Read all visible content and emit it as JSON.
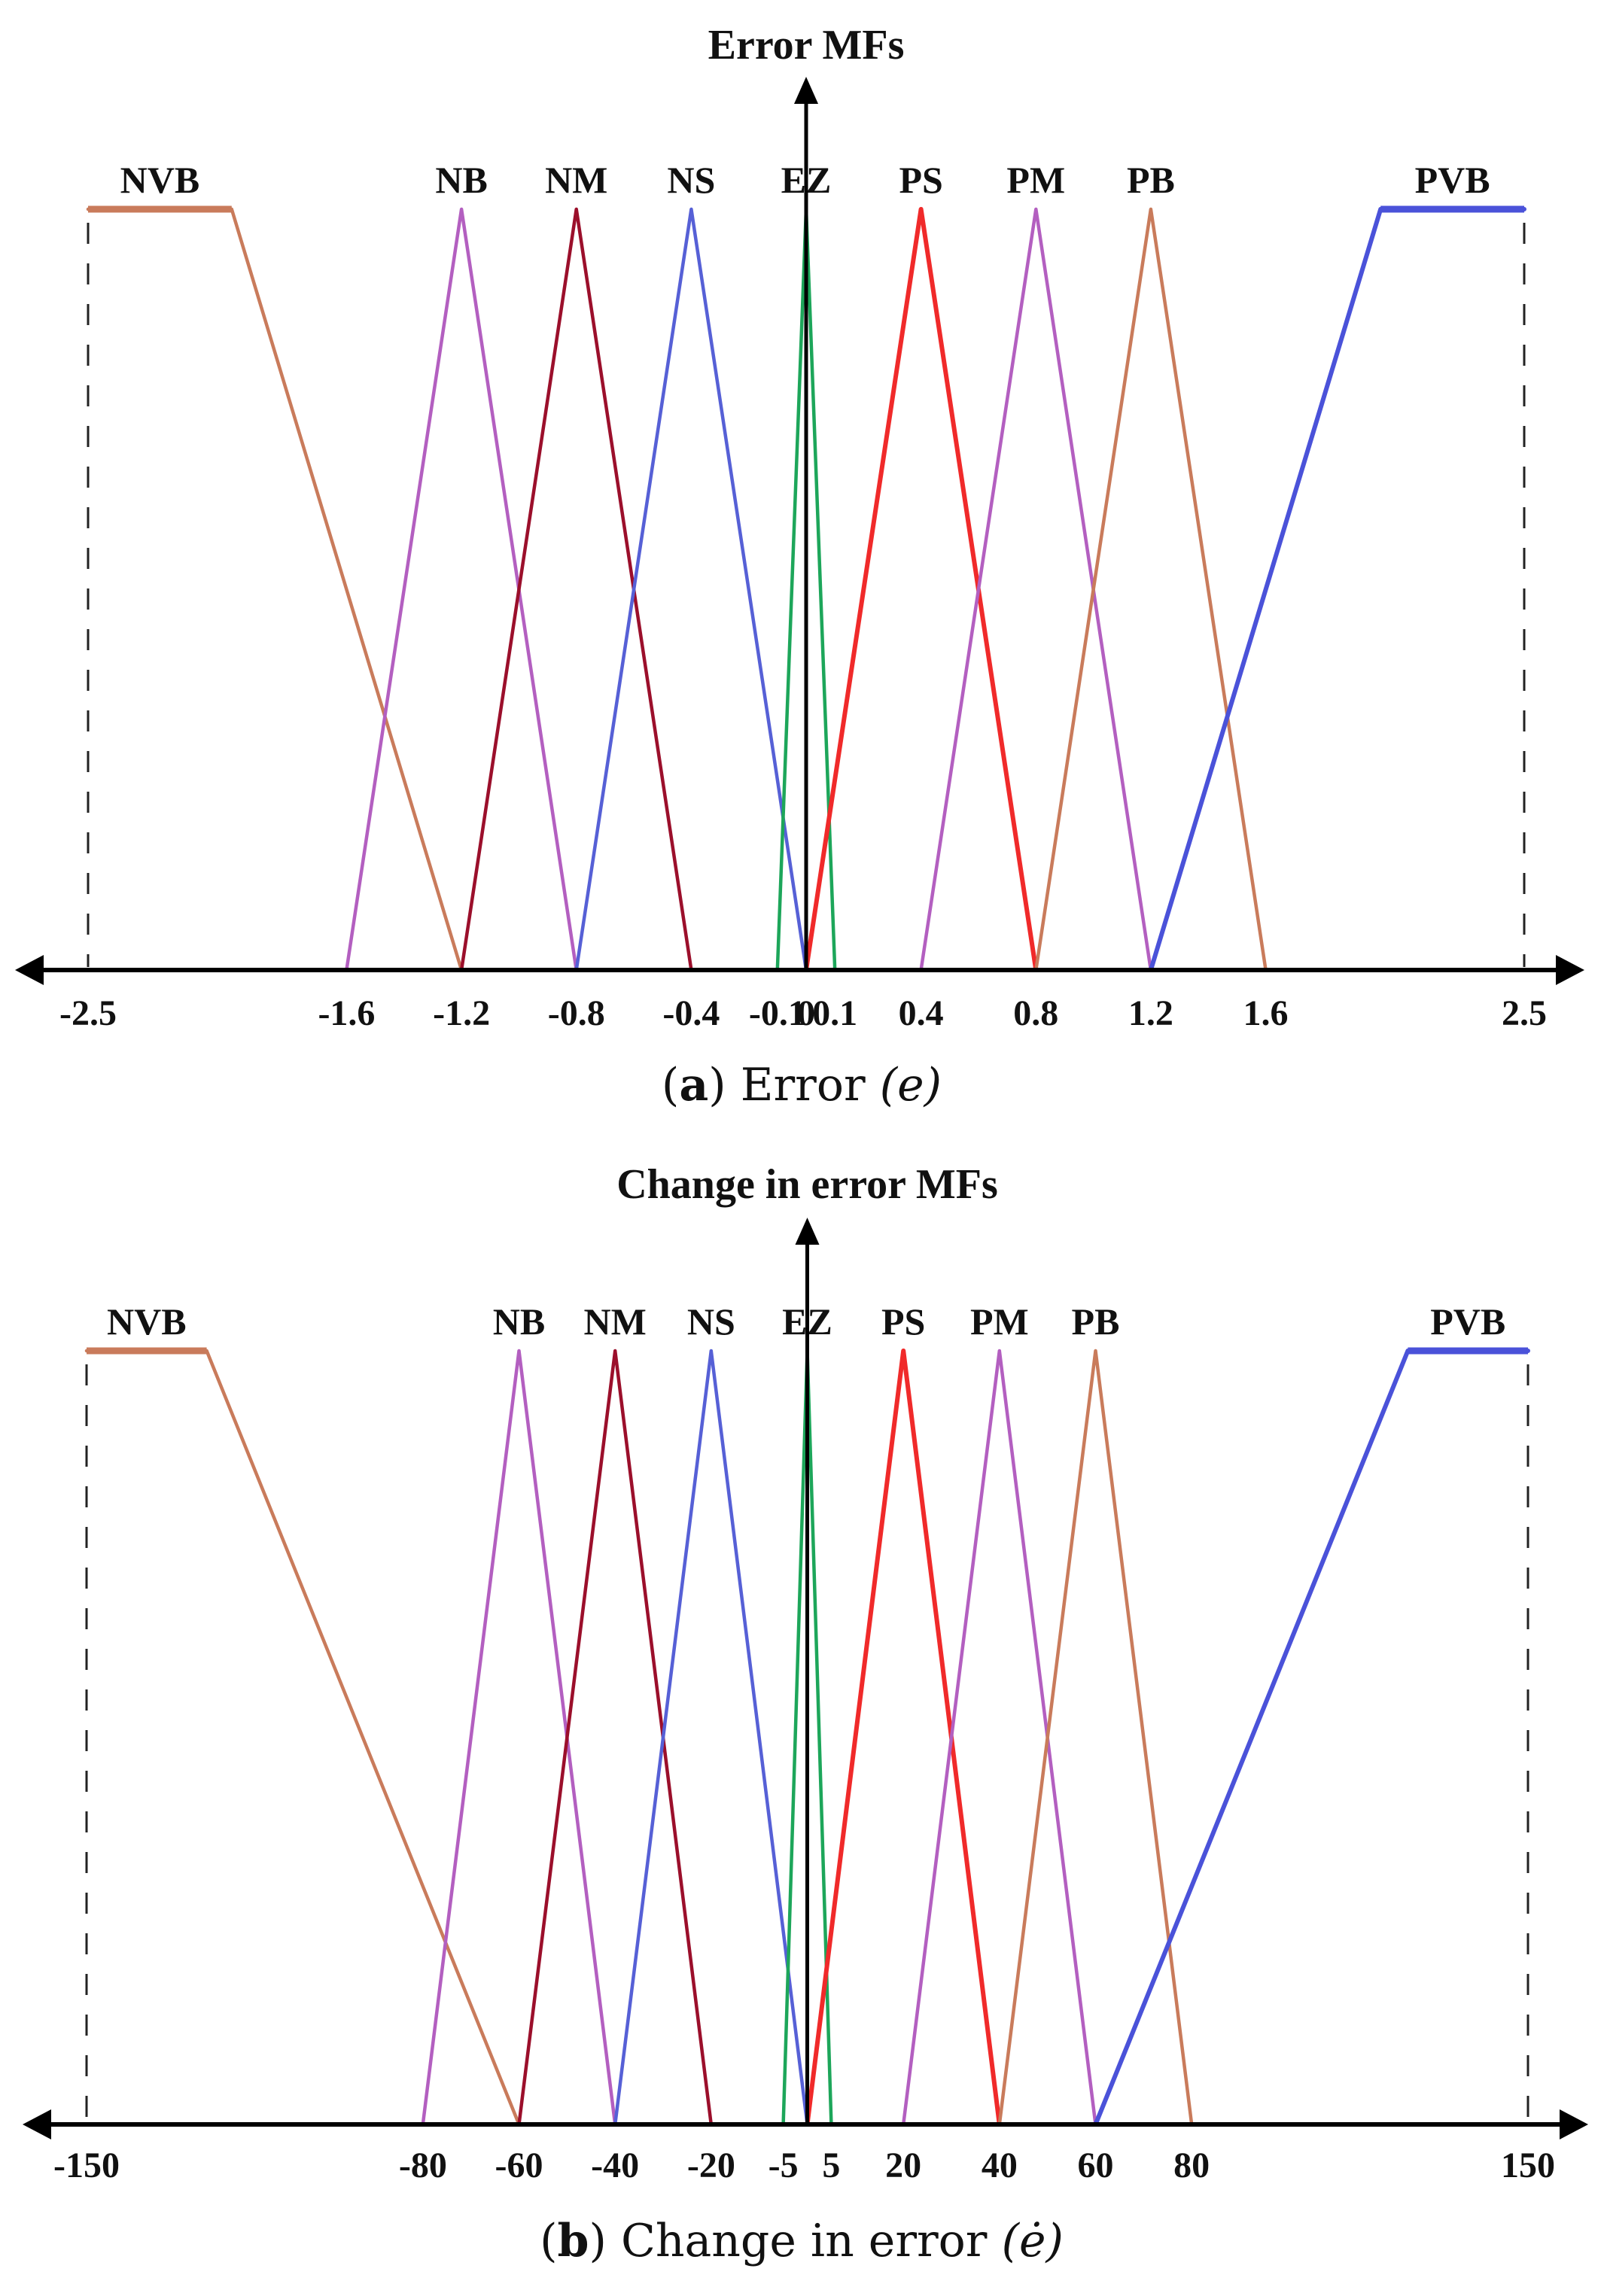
{
  "chart_data": [
    {
      "type": "line",
      "title": "Error MFs",
      "caption_letter": "a",
      "caption_text": "Error",
      "caption_symbol": "(e)",
      "xlim": [
        -2.5,
        2.5
      ],
      "ylim": [
        0,
        1
      ],
      "grid": false,
      "ticks": [
        {
          "label": "-2.5",
          "value": -2.5
        },
        {
          "label": "-1.6",
          "value": -1.6
        },
        {
          "label": "-1.2",
          "value": -1.2
        },
        {
          "label": "-0.8",
          "value": -0.8
        },
        {
          "label": "-0.4",
          "value": -0.4
        },
        {
          "label": "-0.1",
          "value": -0.1
        },
        {
          "label": "0",
          "value": 0
        },
        {
          "label": "0.1",
          "value": 0.1
        },
        {
          "label": "0.4",
          "value": 0.4
        },
        {
          "label": "0.8",
          "value": 0.8
        },
        {
          "label": "1.2",
          "value": 1.2
        },
        {
          "label": "1.6",
          "value": 1.6
        },
        {
          "label": "2.5",
          "value": 2.5
        }
      ],
      "series": [
        {
          "name": "NVB",
          "color": "#c97b5b",
          "x": [
            -2.5,
            -2.0,
            -1.2
          ],
          "y": [
            1,
            1,
            0
          ]
        },
        {
          "name": "NB",
          "color": "#b35fc0",
          "x": [
            -1.6,
            -1.2,
            -0.8
          ],
          "y": [
            0,
            1,
            0
          ]
        },
        {
          "name": "NM",
          "color": "#9b0f2b",
          "x": [
            -1.2,
            -0.8,
            -0.4
          ],
          "y": [
            0,
            1,
            0
          ]
        },
        {
          "name": "NS",
          "color": "#5660d6",
          "x": [
            -0.8,
            -0.4,
            0
          ],
          "y": [
            0,
            1,
            0
          ]
        },
        {
          "name": "EZ",
          "color": "#1da65a",
          "x": [
            -0.1,
            0,
            0.1
          ],
          "y": [
            0,
            1,
            0
          ]
        },
        {
          "name": "PS",
          "color": "#f02a2a",
          "x": [
            0,
            0.4,
            0.8
          ],
          "y": [
            0,
            1,
            0
          ]
        },
        {
          "name": "PM",
          "color": "#b35fc0",
          "x": [
            0.4,
            0.8,
            1.2
          ],
          "y": [
            0,
            1,
            0
          ]
        },
        {
          "name": "PB",
          "color": "#c97b5b",
          "x": [
            0.8,
            1.2,
            1.6
          ],
          "y": [
            0,
            1,
            0
          ]
        },
        {
          "name": "PVB",
          "color": "#4a52d9",
          "x": [
            1.2,
            2.0,
            2.5
          ],
          "y": [
            0,
            1,
            1
          ]
        }
      ]
    },
    {
      "type": "line",
      "title": "Change in error MFs",
      "caption_letter": "b",
      "caption_text": "Change in error",
      "caption_symbol": "(ė)",
      "xlim": [
        -150,
        150
      ],
      "ylim": [
        0,
        1
      ],
      "grid": false,
      "ticks": [
        {
          "label": "-150",
          "value": -150
        },
        {
          "label": "-80",
          "value": -80
        },
        {
          "label": "-60",
          "value": -60
        },
        {
          "label": "-40",
          "value": -40
        },
        {
          "label": "-20",
          "value": -20
        },
        {
          "label": "-5",
          "value": -5
        },
        {
          "label": "5",
          "value": 5
        },
        {
          "label": "20",
          "value": 20
        },
        {
          "label": "40",
          "value": 40
        },
        {
          "label": "60",
          "value": 60
        },
        {
          "label": "80",
          "value": 80
        },
        {
          "label": "150",
          "value": 150
        }
      ],
      "series": [
        {
          "name": "NVB",
          "color": "#c97b5b",
          "x": [
            -150,
            -125,
            -60
          ],
          "y": [
            1,
            1,
            0
          ]
        },
        {
          "name": "NB",
          "color": "#b35fc0",
          "x": [
            -80,
            -60,
            -40
          ],
          "y": [
            0,
            1,
            0
          ]
        },
        {
          "name": "NM",
          "color": "#9b0f2b",
          "x": [
            -60,
            -40,
            -20
          ],
          "y": [
            0,
            1,
            0
          ]
        },
        {
          "name": "NS",
          "color": "#5660d6",
          "x": [
            -40,
            -20,
            0
          ],
          "y": [
            0,
            1,
            0
          ]
        },
        {
          "name": "EZ",
          "color": "#1da65a",
          "x": [
            -5,
            0,
            5
          ],
          "y": [
            0,
            1,
            0
          ]
        },
        {
          "name": "PS",
          "color": "#f02a2a",
          "x": [
            0,
            20,
            40
          ],
          "y": [
            0,
            1,
            0
          ]
        },
        {
          "name": "PM",
          "color": "#b35fc0",
          "x": [
            20,
            40,
            60
          ],
          "y": [
            0,
            1,
            0
          ]
        },
        {
          "name": "PB",
          "color": "#c97b5b",
          "x": [
            40,
            60,
            80
          ],
          "y": [
            0,
            1,
            0
          ]
        },
        {
          "name": "PVB",
          "color": "#4a52d9",
          "x": [
            60,
            125,
            150
          ],
          "y": [
            0,
            1,
            1
          ]
        }
      ]
    }
  ]
}
